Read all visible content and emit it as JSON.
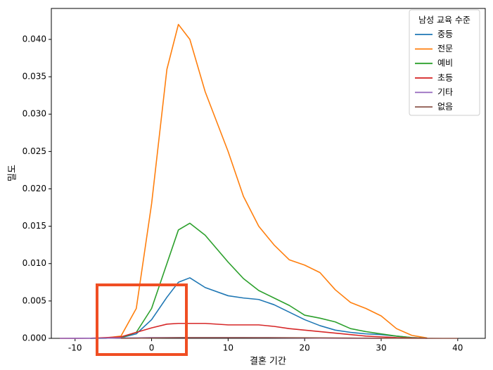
{
  "chart_data": {
    "type": "line",
    "xlabel": "결혼 기간",
    "ylabel": "밀도",
    "legend_title": "남성 교육 수준",
    "legend": "upper right",
    "x": [
      -12,
      -10,
      -8,
      -6,
      -4,
      -2,
      0,
      2,
      3.5,
      5,
      7,
      10,
      12,
      14,
      16,
      18,
      20,
      22,
      24,
      26,
      28,
      30,
      32,
      34,
      36,
      38,
      40
    ],
    "series": [
      {
        "name": "중등",
        "color": "#1f77b4",
        "values": [
          null,
          null,
          0,
          2e-05,
          0.0001,
          0.0006,
          0.0025,
          0.0055,
          0.0075,
          0.0081,
          0.0068,
          0.0057,
          0.0054,
          0.0052,
          0.0045,
          0.0035,
          0.0025,
          0.0017,
          0.0011,
          0.0008,
          0.0006,
          0.0005,
          0.0003,
          0.0001,
          2e-05,
          null,
          null
        ]
      },
      {
        "name": "전문",
        "color": "#ff7f0e",
        "values": [
          null,
          null,
          0,
          5e-05,
          0.0003,
          0.004,
          0.018,
          0.036,
          0.042,
          0.04,
          0.033,
          0.025,
          0.019,
          0.015,
          0.0125,
          0.0105,
          0.0098,
          0.0088,
          0.0065,
          0.0048,
          0.004,
          0.003,
          0.0013,
          0.0004,
          5e-05,
          null,
          null
        ]
      },
      {
        "name": "예비",
        "color": "#2ca02c",
        "values": [
          null,
          null,
          0,
          2e-05,
          0.0001,
          0.0008,
          0.004,
          0.01,
          0.0145,
          0.0154,
          0.0138,
          0.0102,
          0.008,
          0.0064,
          0.0054,
          0.0044,
          0.0031,
          0.0027,
          0.0022,
          0.0013,
          0.0009,
          0.0006,
          0.0003,
          0.0001,
          2e-05,
          null,
          null
        ]
      },
      {
        "name": "초등",
        "color": "#d62728",
        "values": [
          0,
          0,
          2e-05,
          0.0001,
          0.0002,
          0.0008,
          0.0014,
          0.0019,
          0.002,
          0.002,
          0.002,
          0.0018,
          0.0018,
          0.0018,
          0.0016,
          0.0013,
          0.0011,
          0.0009,
          0.0007,
          0.0005,
          0.0003,
          0.0002,
          0.0001,
          5e-05,
          2e-05,
          null,
          null
        ]
      },
      {
        "name": "기타",
        "color": "#9467bd",
        "values": [
          0,
          1e-05,
          2e-05,
          3e-05,
          5e-05,
          7e-05,
          0.0001,
          0.0001,
          0.0001,
          0.0001,
          0.0001,
          0.0001,
          0.0001,
          9e-05,
          8e-05,
          6e-05,
          5e-05,
          3e-05,
          2e-05,
          1e-05,
          1e-05,
          0,
          null,
          null,
          null,
          null,
          null
        ]
      },
      {
        "name": "없음",
        "color": "#8c564b",
        "values": [
          null,
          null,
          null,
          null,
          0,
          2e-05,
          5e-05,
          8e-05,
          0.0001,
          0.0001,
          0.0001,
          0.0001,
          0.0001,
          0.0001,
          0.0001,
          9e-05,
          8e-05,
          6e-05,
          5e-05,
          4e-05,
          3e-05,
          2e-05,
          2e-05,
          1e-05,
          1e-05,
          0,
          0
        ]
      }
    ],
    "xlim": [
      -13.1,
      43.6
    ],
    "xticks": [
      -10,
      0,
      10,
      20,
      30,
      40
    ],
    "ylim": [
      0,
      0.04414
    ],
    "yticks": [
      {
        "value": 0,
        "label": "0.000"
      },
      {
        "value": 0.005,
        "label": "0.005"
      },
      {
        "value": 0.01,
        "label": "0.010"
      },
      {
        "value": 0.015,
        "label": "0.015"
      },
      {
        "value": 0.02,
        "label": "0.020"
      },
      {
        "value": 0.025,
        "label": "0.025"
      },
      {
        "value": 0.03,
        "label": "0.030"
      },
      {
        "value": 0.035,
        "label": "0.035"
      },
      {
        "value": 0.04,
        "label": "0.040"
      }
    ]
  }
}
